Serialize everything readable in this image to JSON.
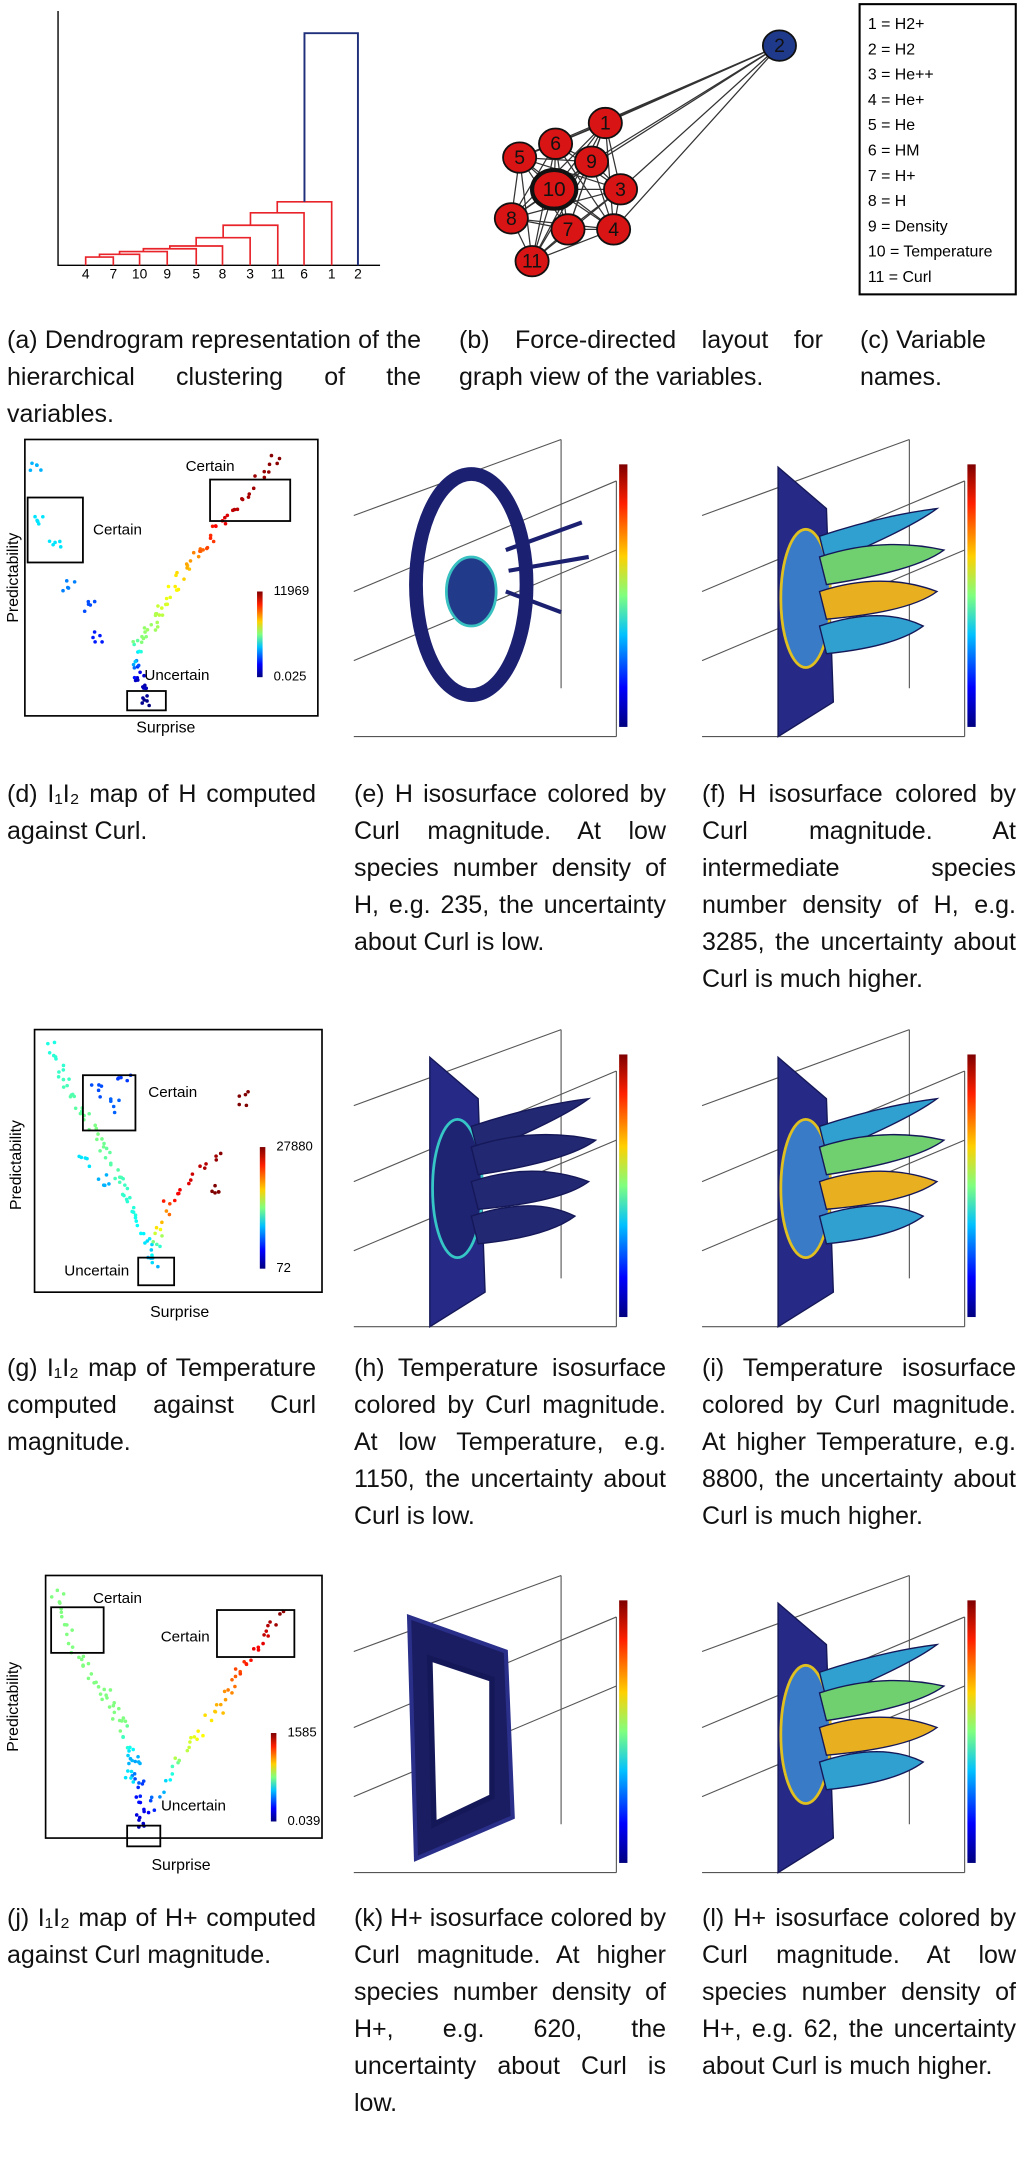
{
  "panels": {
    "a": {
      "leaves": [
        "4",
        "7",
        "10",
        "9",
        "5",
        "8",
        "3",
        "11",
        "6",
        "1",
        "2"
      ],
      "caption": "(a) Dendrogram representation of the hierarchical clustering of the variables."
    },
    "b": {
      "nodes": [
        "1",
        "2",
        "3",
        "4",
        "5",
        "6",
        "7",
        "8",
        "9",
        "10",
        "11"
      ],
      "caption": "(b) Force-directed layout for graph view of the variables."
    },
    "c": {
      "legend": [
        "1 = H2+",
        "2 = H2",
        "3 = He++",
        "4 = He+",
        "5 = He",
        "6 = HM",
        "7 = H+",
        "8 = H",
        "9 = Density",
        "10 = Temperature",
        "11 = Curl"
      ],
      "caption": "(c) Variable names."
    },
    "d": {
      "y_label": "Predictability",
      "x_label": "Surprise",
      "notes": [
        "Certain",
        "Certain",
        "Uncertain"
      ],
      "colorbar": [
        11969,
        0.025
      ],
      "caption": "(d) I₁I₂ map of H computed against Curl."
    },
    "e": {
      "caption": "(e) H isosurface colored by Curl magnitude. At low species number density of H, e.g. 235, the uncertainty about Curl is low."
    },
    "f": {
      "caption": "(f) H isosurface colored by Curl magnitude. At intermediate species number density of H, e.g. 3285, the uncertainty about Curl is much higher."
    },
    "g": {
      "y_label": "Predictability",
      "x_label": "Surprise",
      "notes": [
        "Certain",
        "Uncertain"
      ],
      "colorbar": [
        27880,
        72
      ],
      "caption": "(g) I₁I₂ map of Temperature computed against Curl magnitude."
    },
    "h": {
      "caption": "(h) Temperature isosurface colored by Curl magnitude. At low Temperature, e.g. 1150, the uncertainty about Curl is low."
    },
    "i": {
      "caption": "(i) Temperature isosurface colored by Curl magnitude. At higher Temperature, e.g. 8800, the uncertainty about Curl is much higher."
    },
    "j": {
      "y_label": "Predictability",
      "x_label": "Surprise",
      "notes": [
        "Certain",
        "Certain",
        "Uncertain"
      ],
      "colorbar": [
        1585,
        0.039
      ],
      "caption": "(j) I₁I₂ map of H+ computed against Curl magnitude."
    },
    "k": {
      "caption": "(k) H+ isosurface colored by Curl magnitude. At higher species number density of H+, e.g. 620, the uncertainty about Curl is low."
    },
    "l": {
      "caption": "(l) H+ isosurface colored by Curl magnitude. At low species number density of H+, e.g. 62, the uncertainty about Curl is much higher."
    }
  }
}
